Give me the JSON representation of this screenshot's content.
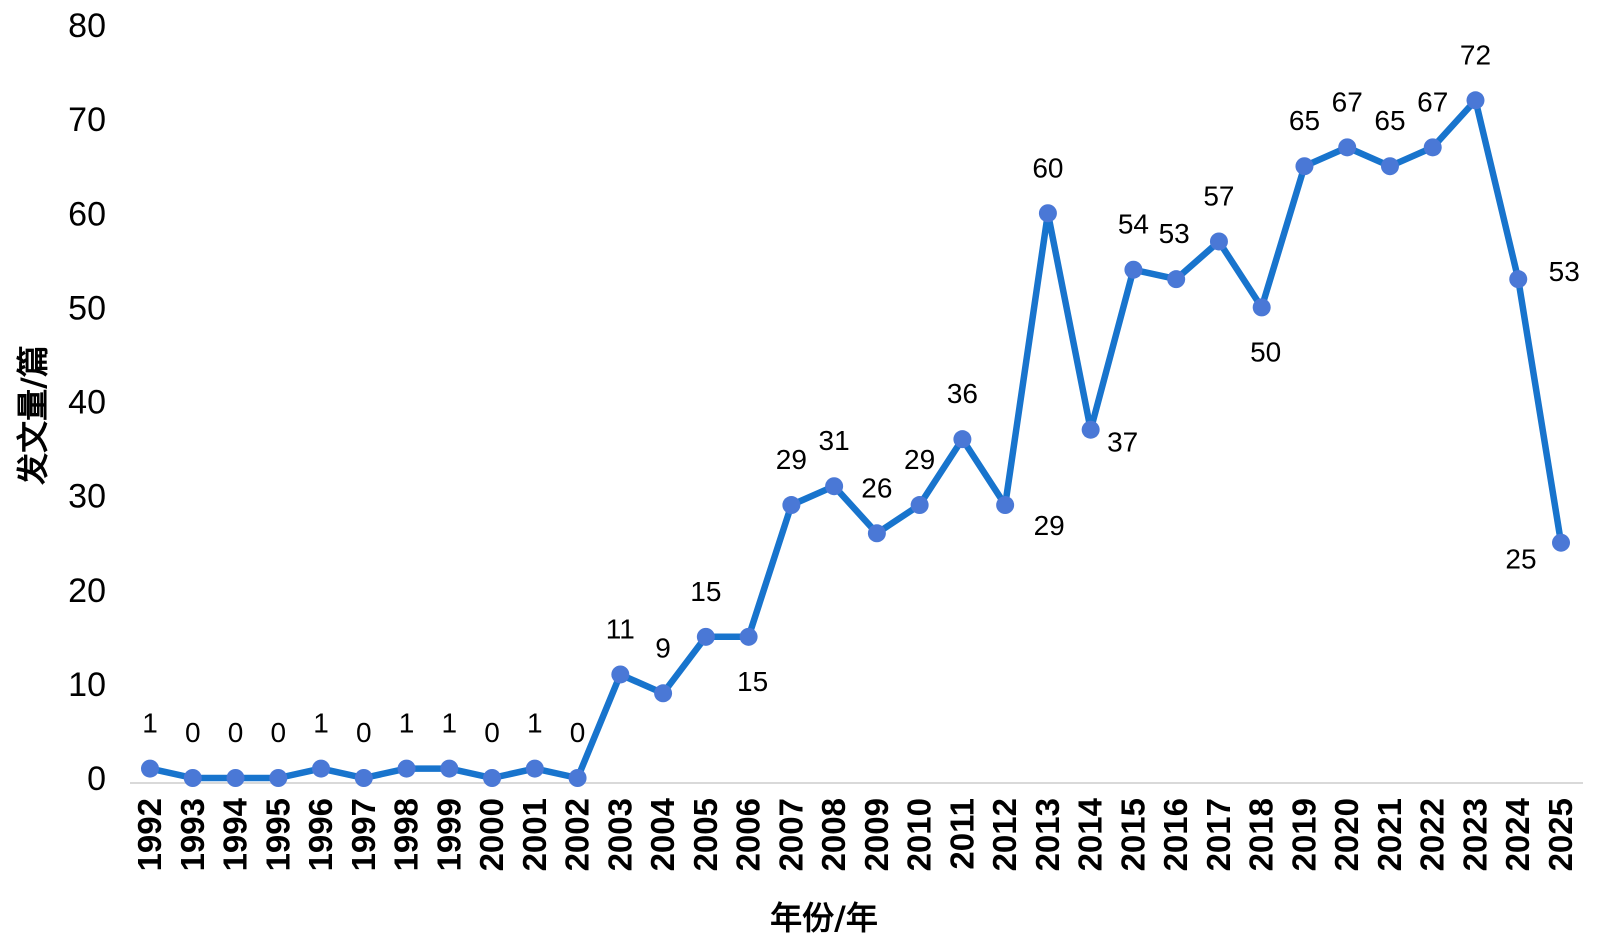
{
  "chart_data": {
    "type": "line",
    "xlabel": "年份/年",
    "ylabel": "发文量/篇",
    "ylim": [
      0,
      80
    ],
    "yticks": [
      0,
      10,
      20,
      30,
      40,
      50,
      60,
      70,
      80
    ],
    "grid": false,
    "line_color": "#1874cd",
    "marker_color": "#4a78d6",
    "categories": [
      "1992",
      "1993",
      "1994",
      "1995",
      "1996",
      "1997",
      "1998",
      "1999",
      "2000",
      "2001",
      "2002",
      "2003",
      "2004",
      "2005",
      "2006",
      "2007",
      "2008",
      "2009",
      "2010",
      "2011",
      "2012",
      "2013",
      "2014",
      "2015",
      "2016",
      "2017",
      "2018",
      "2019",
      "2020",
      "2021",
      "2022",
      "2023",
      "2024",
      "2025"
    ],
    "values": [
      1,
      0,
      0,
      0,
      1,
      0,
      1,
      1,
      0,
      1,
      0,
      11,
      9,
      15,
      15,
      29,
      31,
      26,
      29,
      36,
      29,
      60,
      37,
      54,
      53,
      57,
      50,
      65,
      67,
      65,
      67,
      72,
      53,
      25
    ],
    "labels": [
      "1",
      "0",
      "0",
      "0",
      "1",
      "0",
      "1",
      "1",
      "0",
      "1",
      "0",
      "11",
      "9",
      "15",
      "15",
      "29",
      "31",
      "26",
      "29",
      "36",
      "29",
      "60",
      "37",
      "54",
      "53",
      "57",
      "50",
      "65",
      "67",
      "65",
      "67",
      "72",
      "53",
      "25"
    ]
  }
}
